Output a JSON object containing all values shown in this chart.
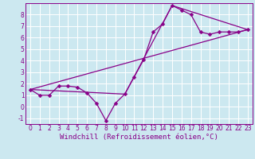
{
  "xlabel": "Windchill (Refroidissement éolien,°C)",
  "bg_color": "#cce8f0",
  "grid_color": "#ffffff",
  "line_color": "#880088",
  "xlim": [
    -0.5,
    23.5
  ],
  "ylim": [
    -1.5,
    9.0
  ],
  "xticks": [
    0,
    1,
    2,
    3,
    4,
    5,
    6,
    7,
    8,
    9,
    10,
    11,
    12,
    13,
    14,
    15,
    16,
    17,
    18,
    19,
    20,
    21,
    22,
    23
  ],
  "yticks": [
    -1,
    0,
    1,
    2,
    3,
    4,
    5,
    6,
    7,
    8
  ],
  "line1_x": [
    0,
    1,
    2,
    3,
    4,
    5,
    6,
    7,
    8,
    9,
    10,
    11,
    12,
    13,
    14,
    15,
    16,
    17,
    18,
    19,
    20,
    21,
    22,
    23
  ],
  "line1_y": [
    1.5,
    1.0,
    1.0,
    1.8,
    1.8,
    1.7,
    1.2,
    0.3,
    -1.2,
    0.3,
    1.1,
    2.6,
    4.1,
    6.5,
    7.2,
    8.8,
    8.4,
    8.0,
    6.5,
    6.3,
    6.5,
    6.5,
    6.5,
    6.7
  ],
  "line2_x": [
    0,
    10,
    15,
    23
  ],
  "line2_y": [
    1.5,
    1.1,
    8.8,
    6.7
  ],
  "line3_x": [
    0,
    23
  ],
  "line3_y": [
    1.5,
    6.7
  ],
  "markersize": 2.5,
  "linewidth": 0.9,
  "xlabel_fontsize": 6.5
}
